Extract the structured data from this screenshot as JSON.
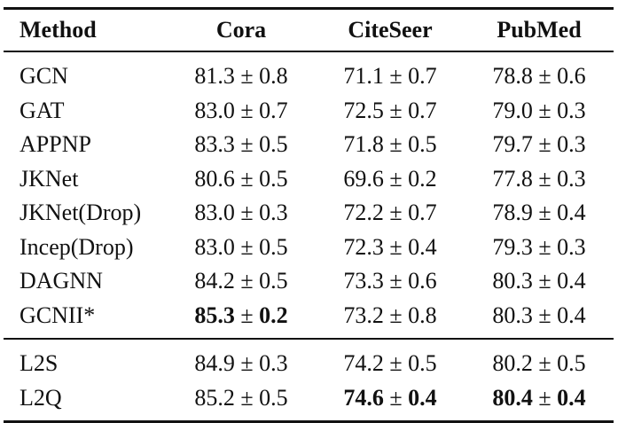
{
  "table": {
    "headers": [
      "Method",
      "Cora",
      "CiteSeer",
      "PubMed"
    ],
    "group1": [
      {
        "method": "GCN",
        "cells": [
          {
            "mean": "81.3",
            "std": "0.8"
          },
          {
            "mean": "71.1",
            "std": "0.7"
          },
          {
            "mean": "78.8",
            "std": "0.6"
          }
        ]
      },
      {
        "method": "GAT",
        "cells": [
          {
            "mean": "83.0",
            "std": "0.7"
          },
          {
            "mean": "72.5",
            "std": "0.7"
          },
          {
            "mean": "79.0",
            "std": "0.3"
          }
        ]
      },
      {
        "method": "APPNP",
        "cells": [
          {
            "mean": "83.3",
            "std": "0.5"
          },
          {
            "mean": "71.8",
            "std": "0.5"
          },
          {
            "mean": "79.7",
            "std": "0.3"
          }
        ]
      },
      {
        "method": "JKNet",
        "cells": [
          {
            "mean": "80.6",
            "std": "0.5"
          },
          {
            "mean": "69.6",
            "std": "0.2"
          },
          {
            "mean": "77.8",
            "std": "0.3"
          }
        ]
      },
      {
        "method": "JKNet(Drop)",
        "cells": [
          {
            "mean": "83.0",
            "std": "0.3"
          },
          {
            "mean": "72.2",
            "std": "0.7"
          },
          {
            "mean": "78.9",
            "std": "0.4"
          }
        ]
      },
      {
        "method": "Incep(Drop)",
        "cells": [
          {
            "mean": "83.0",
            "std": "0.5"
          },
          {
            "mean": "72.3",
            "std": "0.4"
          },
          {
            "mean": "79.3",
            "std": "0.3"
          }
        ]
      },
      {
        "method": "DAGNN",
        "cells": [
          {
            "mean": "84.2",
            "std": "0.5"
          },
          {
            "mean": "73.3",
            "std": "0.6"
          },
          {
            "mean": "80.3",
            "std": "0.4"
          }
        ]
      },
      {
        "method": "GCNII*",
        "cells": [
          {
            "mean": "85.3",
            "std": "0.2",
            "bold": true
          },
          {
            "mean": "73.2",
            "std": "0.8"
          },
          {
            "mean": "80.3",
            "std": "0.4"
          }
        ]
      }
    ],
    "group2": [
      {
        "method": "L2S",
        "cells": [
          {
            "mean": "84.9",
            "std": "0.3"
          },
          {
            "mean": "74.2",
            "std": "0.5"
          },
          {
            "mean": "80.2",
            "std": "0.5"
          }
        ]
      },
      {
        "method": "L2Q",
        "cells": [
          {
            "mean": "85.2",
            "std": "0.5"
          },
          {
            "mean": "74.6",
            "std": "0.4",
            "bold": true
          },
          {
            "mean": "80.4",
            "std": "0.4",
            "bold": true
          }
        ]
      }
    ],
    "pm_symbol": "±"
  }
}
